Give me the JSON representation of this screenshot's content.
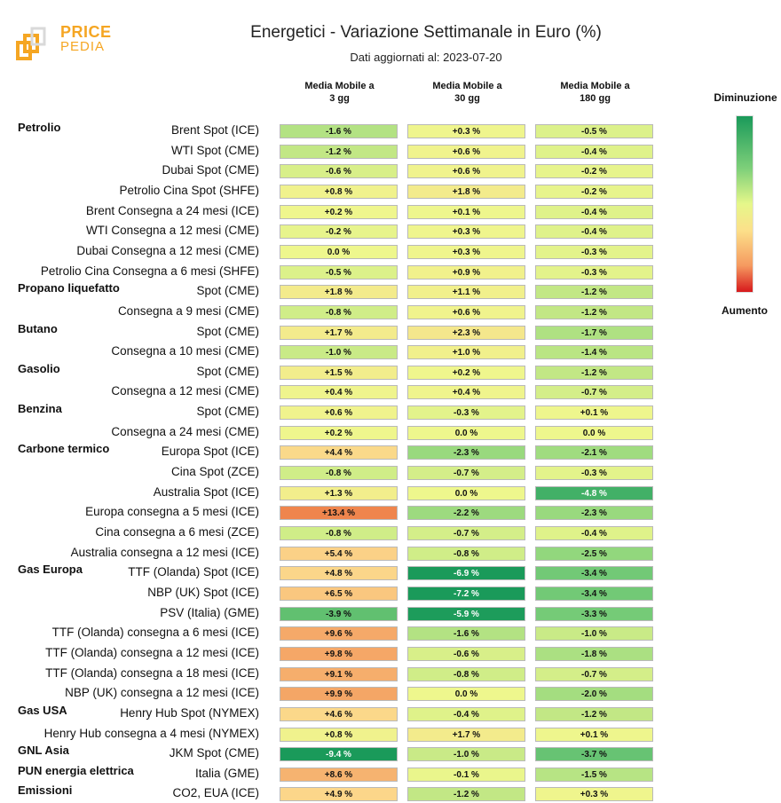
{
  "logo": {
    "top_text": "PRICE",
    "bottom_text": "PEDIA"
  },
  "title": "Energetici - Variazione Settimanale in Euro (%)",
  "subtitle": "Dati aggiornati al: 2023-07-20",
  "columns": [
    {
      "line1": "Media Mobile a",
      "line2": "3 gg"
    },
    {
      "line1": "Media Mobile a",
      "line2": "30 gg"
    },
    {
      "line1": "Media Mobile a",
      "line2": "180 gg"
    }
  ],
  "legend": {
    "top": "Diminuzione",
    "bottom": "Aumento"
  },
  "chart_data": {
    "type": "table",
    "title": "Energetici - Variazione Settimanale in Euro (%)",
    "subtitle": "Dati aggiornati al: 2023-07-20",
    "columns": [
      "Media Mobile a 3 gg",
      "Media Mobile a 30 gg",
      "Media Mobile a 180 gg"
    ],
    "rows": [
      {
        "group": "Petrolio",
        "label": "Brent Spot (ICE)",
        "values": [
          -1.6,
          0.3,
          -0.5
        ],
        "display": [
          "-1.6 %",
          "+0.3 %",
          "-0.5 %"
        ]
      },
      {
        "group": "",
        "label": "WTI Spot (CME)",
        "values": [
          -1.2,
          0.6,
          -0.4
        ],
        "display": [
          "-1.2 %",
          "+0.6 %",
          "-0.4 %"
        ]
      },
      {
        "group": "",
        "label": "Dubai Spot (CME)",
        "values": [
          -0.6,
          0.6,
          -0.2
        ],
        "display": [
          "-0.6 %",
          "+0.6 %",
          "-0.2 %"
        ]
      },
      {
        "group": "",
        "label": "Petrolio Cina Spot (SHFE)",
        "values": [
          0.8,
          1.8,
          -0.2
        ],
        "display": [
          "+0.8 %",
          "+1.8 %",
          "-0.2 %"
        ]
      },
      {
        "group": "",
        "label": "Brent Consegna a 24 mesi (ICE)",
        "values": [
          0.2,
          0.1,
          -0.4
        ],
        "display": [
          "+0.2 %",
          "+0.1 %",
          "-0.4 %"
        ]
      },
      {
        "group": "",
        "label": "WTI Consegna a 12 mesi (CME)",
        "values": [
          -0.2,
          0.3,
          -0.4
        ],
        "display": [
          "-0.2 %",
          "+0.3 %",
          "-0.4 %"
        ]
      },
      {
        "group": "",
        "label": "Dubai Consegna a 12 mesi (CME)",
        "values": [
          0.0,
          0.3,
          -0.3
        ],
        "display": [
          "0.0 %",
          "+0.3 %",
          "-0.3 %"
        ]
      },
      {
        "group": "",
        "label": "Petrolio Cina Consegna a 6 mesi (SHFE)",
        "values": [
          -0.5,
          0.9,
          -0.3
        ],
        "display": [
          "-0.5 %",
          "+0.9 %",
          "-0.3 %"
        ]
      },
      {
        "group": "Propano liquefatto",
        "label": "Spot (CME)",
        "values": [
          1.8,
          1.1,
          -1.2
        ],
        "display": [
          "+1.8 %",
          "+1.1 %",
          "-1.2 %"
        ]
      },
      {
        "group": "",
        "label": "Consegna a 9 mesi (CME)",
        "values": [
          -0.8,
          0.6,
          -1.2
        ],
        "display": [
          "-0.8 %",
          "+0.6 %",
          "-1.2 %"
        ]
      },
      {
        "group": "Butano",
        "label": "Spot (CME)",
        "values": [
          1.7,
          2.3,
          -1.7
        ],
        "display": [
          "+1.7 %",
          "+2.3 %",
          "-1.7 %"
        ]
      },
      {
        "group": "",
        "label": "Consegna a 10 mesi (CME)",
        "values": [
          -1.0,
          1.0,
          -1.4
        ],
        "display": [
          "-1.0 %",
          "+1.0 %",
          "-1.4 %"
        ]
      },
      {
        "group": "Gasolio",
        "label": "Spot (CME)",
        "values": [
          1.5,
          0.2,
          -1.2
        ],
        "display": [
          "+1.5 %",
          "+0.2 %",
          "-1.2 %"
        ]
      },
      {
        "group": "",
        "label": "Consegna a 12 mesi (CME)",
        "values": [
          0.4,
          0.4,
          -0.7
        ],
        "display": [
          "+0.4 %",
          "+0.4 %",
          "-0.7 %"
        ]
      },
      {
        "group": "Benzina",
        "label": "Spot (CME)",
        "values": [
          0.6,
          -0.3,
          0.1
        ],
        "display": [
          "+0.6 %",
          "-0.3 %",
          "+0.1 %"
        ]
      },
      {
        "group": "",
        "label": "Consegna a 24 mesi (CME)",
        "values": [
          0.2,
          0.0,
          0.0
        ],
        "display": [
          "+0.2 %",
          "0.0 %",
          "0.0 %"
        ]
      },
      {
        "group": "Carbone termico",
        "label": "Europa Spot (ICE)",
        "values": [
          4.4,
          -2.3,
          -2.1
        ],
        "display": [
          "+4.4 %",
          "-2.3 %",
          "-2.1 %"
        ]
      },
      {
        "group": "",
        "label": "Cina Spot (ZCE)",
        "values": [
          -0.8,
          -0.7,
          -0.3
        ],
        "display": [
          "-0.8 %",
          "-0.7 %",
          "-0.3 %"
        ]
      },
      {
        "group": "",
        "label": "Australia Spot (ICE)",
        "values": [
          1.3,
          0.0,
          -4.8
        ],
        "display": [
          "+1.3 %",
          "0.0 %",
          "-4.8 %"
        ]
      },
      {
        "group": "",
        "label": "Europa consegna a 5 mesi (ICE)",
        "values": [
          13.4,
          -2.2,
          -2.3
        ],
        "display": [
          "+13.4 %",
          "-2.2 %",
          "-2.3 %"
        ]
      },
      {
        "group": "",
        "label": "Cina consegna a 6 mesi (ZCE)",
        "values": [
          -0.8,
          -0.7,
          -0.4
        ],
        "display": [
          "-0.8 %",
          "-0.7 %",
          "-0.4 %"
        ]
      },
      {
        "group": "",
        "label": "Australia consegna a 12 mesi (ICE)",
        "values": [
          5.4,
          -0.8,
          -2.5
        ],
        "display": [
          "+5.4 %",
          "-0.8 %",
          "-2.5 %"
        ]
      },
      {
        "group": "Gas Europa",
        "label": "TTF (Olanda) Spot (ICE)",
        "values": [
          4.8,
          -6.9,
          -3.4
        ],
        "display": [
          "+4.8 %",
          "-6.9 %",
          "-3.4 %"
        ]
      },
      {
        "group": "",
        "label": "NBP (UK) Spot (ICE)",
        "values": [
          6.5,
          -7.2,
          -3.4
        ],
        "display": [
          "+6.5 %",
          "-7.2 %",
          "-3.4 %"
        ]
      },
      {
        "group": "",
        "label": "PSV (Italia) (GME)",
        "values": [
          -3.9,
          -5.9,
          -3.3
        ],
        "display": [
          "-3.9 %",
          "-5.9 %",
          "-3.3 %"
        ]
      },
      {
        "group": "",
        "label": "TTF (Olanda) consegna a 6 mesi (ICE)",
        "values": [
          9.6,
          -1.6,
          -1.0
        ],
        "display": [
          "+9.6 %",
          "-1.6 %",
          "-1.0 %"
        ]
      },
      {
        "group": "",
        "label": "TTF (Olanda) consegna a 12 mesi (ICE)",
        "values": [
          9.8,
          -0.6,
          -1.8
        ],
        "display": [
          "+9.8 %",
          "-0.6 %",
          "-1.8 %"
        ]
      },
      {
        "group": "",
        "label": "TTF (Olanda) consegna a 18 mesi (ICE)",
        "values": [
          9.1,
          -0.8,
          -0.7
        ],
        "display": [
          "+9.1 %",
          "-0.8 %",
          "-0.7 %"
        ]
      },
      {
        "group": "",
        "label": "NBP (UK) consegna a 12 mesi (ICE)",
        "values": [
          9.9,
          0.0,
          -2.0
        ],
        "display": [
          "+9.9 %",
          "0.0 %",
          "-2.0 %"
        ]
      },
      {
        "group": "Gas USA",
        "label": "Henry Hub Spot (NYMEX)",
        "values": [
          4.6,
          -0.4,
          -1.2
        ],
        "display": [
          "+4.6 %",
          "-0.4 %",
          "-1.2 %"
        ]
      },
      {
        "group": "",
        "label": "Henry Hub consegna a 4 mesi (NYMEX)",
        "values": [
          0.8,
          1.7,
          0.1
        ],
        "display": [
          "+0.8 %",
          "+1.7 %",
          "+0.1 %"
        ]
      },
      {
        "group": "GNL Asia",
        "label": "JKM Spot (CME)",
        "values": [
          -9.4,
          -1.0,
          -3.7
        ],
        "display": [
          "-9.4 %",
          "-1.0 %",
          "-3.7 %"
        ]
      },
      {
        "group": "PUN energia elettrica",
        "label": "Italia (GME)",
        "values": [
          8.6,
          -0.1,
          -1.5
        ],
        "display": [
          "+8.6 %",
          "-0.1 %",
          "-1.5 %"
        ]
      },
      {
        "group": "Emissioni",
        "label": "CO2, EUA (ICE)",
        "values": [
          4.9,
          -1.2,
          0.3
        ],
        "display": [
          "+4.9 %",
          "-1.2 %",
          "+0.3 %"
        ]
      }
    ],
    "colors": {
      "strong_decrease": "#1a9a5a",
      "decrease": "#7fd07a",
      "neutral": "#eef78d",
      "increase": "#fcd58a",
      "strong_increase": "#ef854d"
    }
  }
}
